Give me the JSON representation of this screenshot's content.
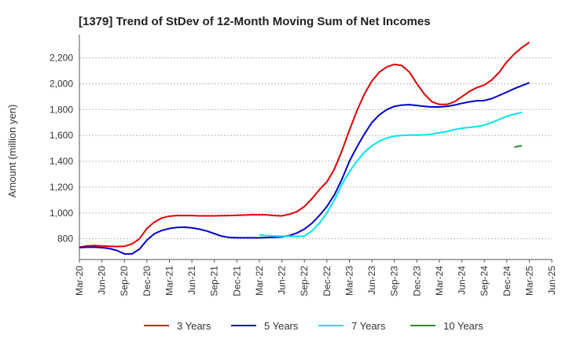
{
  "chart_data": {
    "type": "line",
    "title": "[1379]  Trend of StDev of 12-Month Moving Sum of Net Incomes",
    "ylabel": "Amount (million yen)",
    "xlabel": "",
    "ylim": [
      640,
      2380
    ],
    "yticks": [
      800,
      1000,
      1200,
      1400,
      1600,
      1800,
      2000,
      2200
    ],
    "ytick_labels": [
      "800",
      "1,000",
      "1,200",
      "1,400",
      "1,600",
      "1,800",
      "2,000",
      "2,200"
    ],
    "x_start": "Mar-20",
    "x_end": "Jun-25",
    "xtick_labels": [
      "Mar-20",
      "Jun-20",
      "Sep-20",
      "Dec-20",
      "Mar-21",
      "Jun-21",
      "Sep-21",
      "Dec-21",
      "Mar-22",
      "Jun-22",
      "Sep-22",
      "Dec-22",
      "Mar-23",
      "Jun-23",
      "Sep-23",
      "Dec-23",
      "Mar-24",
      "Jun-24",
      "Sep-24",
      "Dec-24",
      "Mar-25",
      "Jun-25"
    ],
    "grid": "horizontal",
    "legend_position": "bottom",
    "series": [
      {
        "name": "3 Years",
        "color": "#e00000",
        "start": "Mar-20",
        "values": [
          735,
          745,
          748,
          745,
          742,
          740,
          742,
          760,
          800,
          880,
          930,
          962,
          975,
          980,
          980,
          980,
          978,
          978,
          978,
          979,
          980,
          982,
          984,
          986,
          986,
          985,
          980,
          978,
          990,
          1010,
          1050,
          1110,
          1180,
          1240,
          1340,
          1480,
          1640,
          1790,
          1920,
          2020,
          2090,
          2130,
          2150,
          2140,
          2090,
          2000,
          1920,
          1860,
          1840,
          1840,
          1860,
          1900,
          1940,
          1970,
          1990,
          2030,
          2090,
          2170,
          2230,
          2280,
          2320
        ]
      },
      {
        "name": "5 Years",
        "color": "#0000cc",
        "start": "Mar-20",
        "values": [
          732,
          735,
          735,
          732,
          725,
          710,
          683,
          683,
          720,
          790,
          840,
          865,
          880,
          888,
          890,
          885,
          875,
          860,
          840,
          820,
          810,
          808,
          808,
          808,
          808,
          810,
          812,
          815,
          825,
          845,
          875,
          920,
          980,
          1050,
          1140,
          1260,
          1400,
          1510,
          1610,
          1700,
          1760,
          1800,
          1825,
          1835,
          1838,
          1832,
          1825,
          1820,
          1820,
          1825,
          1835,
          1848,
          1860,
          1868,
          1870,
          1885,
          1910,
          1935,
          1962,
          1985,
          2008
        ]
      },
      {
        "name": "7 Years",
        "color": "#00e5ee",
        "start": "Mar-22",
        "values": [
          830,
          825,
          822,
          820,
          820,
          818,
          822,
          860,
          920,
          1000,
          1100,
          1220,
          1320,
          1400,
          1470,
          1520,
          1555,
          1580,
          1595,
          1600,
          1603,
          1603,
          1605,
          1610,
          1620,
          1630,
          1645,
          1655,
          1662,
          1668,
          1680,
          1700,
          1725,
          1748,
          1765,
          1778
        ]
      },
      {
        "name": "10 Years",
        "color": "#2e8b2e",
        "start": "Jan-25",
        "values": [
          1510,
          1520
        ]
      }
    ]
  }
}
